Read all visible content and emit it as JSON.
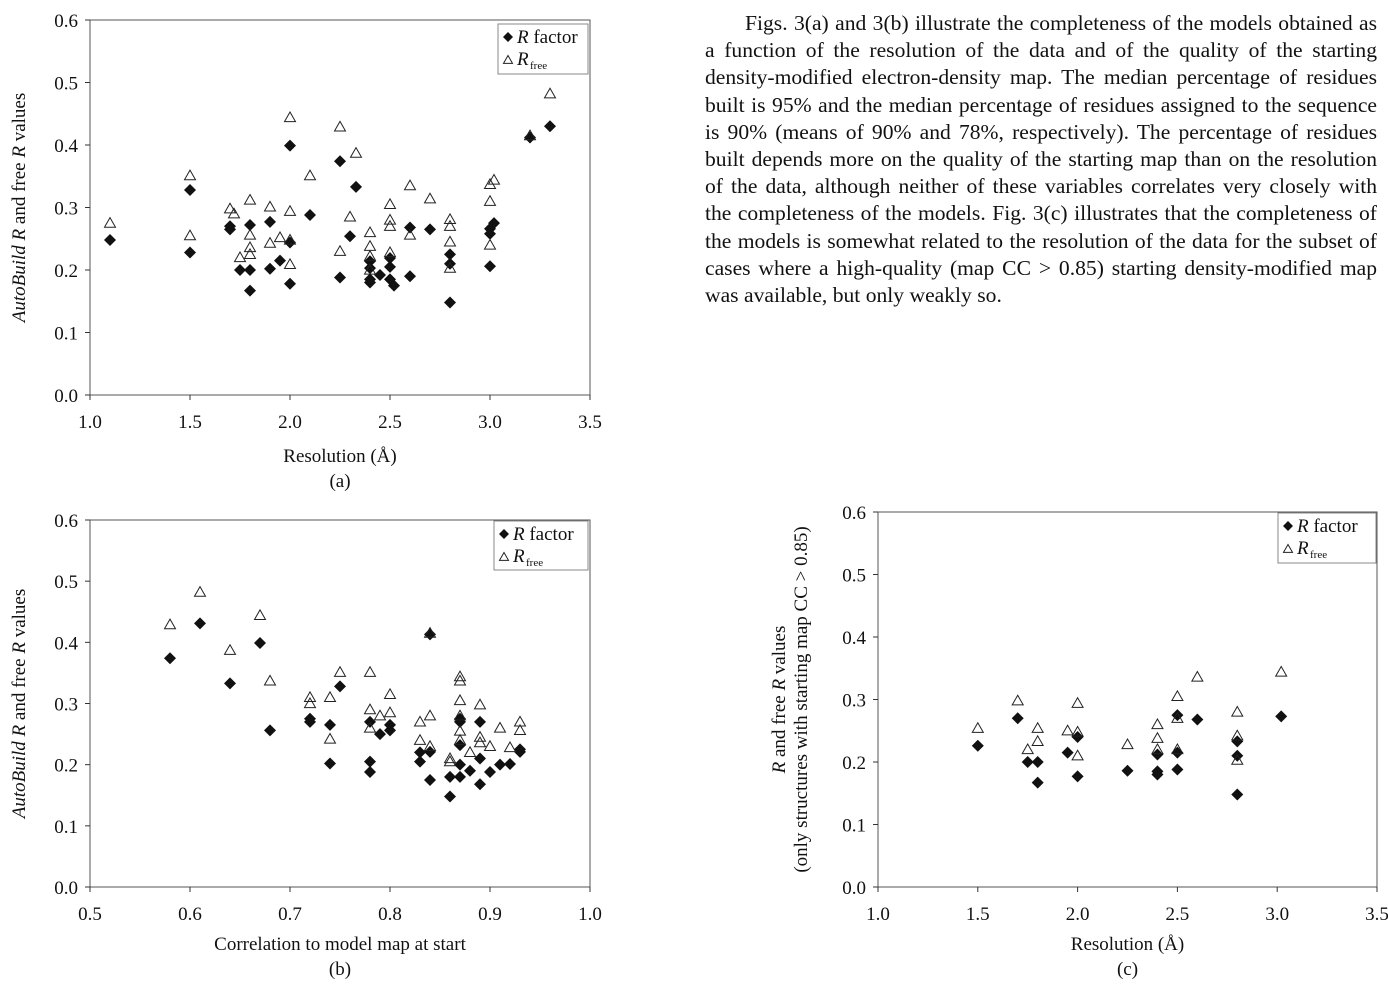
{
  "paragraph": "Figs. 3(a) and 3(b) illustrate the completeness of the models obtained as a function of the resolution of the data and of the quality of the starting density-modified electron-density map. The median percentage of residues built is 95% and the median percentage of residues assigned to the sequence is 90% (means of 90% and 78%, respectively). The percentage of residues built depends more on the quality of the starting map than on the resolution of the data, although neither of these variables correlates very closely with the completeness of the models. Fig. 3(c) illustrates that the completeness of the models is somewhat related to the resolution of the data for the subset of cases where a high-quality (map CC > 0.85) starting density-modified map was available, but only weakly so.",
  "chart_data": [
    {
      "id": "a",
      "type": "scatter",
      "caption": "(a)",
      "xlabel": "Resolution (Å)",
      "ylabel_italic": "AutoBuild",
      "ylabel_rest": " R and free R values",
      "xlim": [
        1.0,
        3.5
      ],
      "ylim": [
        0.0,
        0.6
      ],
      "xticks": [
        "1.0",
        "1.5",
        "2.0",
        "2.5",
        "3.0",
        "3.5"
      ],
      "yticks": [
        "0.0",
        "0.1",
        "0.2",
        "0.3",
        "0.4",
        "0.5",
        "0.6"
      ],
      "legend": {
        "r_label": "R factor",
        "rfree_label": "R",
        "rfree_sub": "free",
        "position": "top-right"
      },
      "series": [
        {
          "key": "r",
          "marker": "filled-diamond",
          "points": [
            [
              1.1,
              0.248
            ],
            [
              1.5,
              0.328
            ],
            [
              1.5,
              0.228
            ],
            [
              1.7,
              0.27
            ],
            [
              1.7,
              0.265
            ],
            [
              1.75,
              0.2
            ],
            [
              1.8,
              0.272
            ],
            [
              1.8,
              0.2
            ],
            [
              1.8,
              0.167
            ],
            [
              1.9,
              0.277
            ],
            [
              1.9,
              0.202
            ],
            [
              1.95,
              0.215
            ],
            [
              2.0,
              0.399
            ],
            [
              2.0,
              0.244
            ],
            [
              2.0,
              0.178
            ],
            [
              2.1,
              0.288
            ],
            [
              2.25,
              0.374
            ],
            [
              2.25,
              0.188
            ],
            [
              2.3,
              0.254
            ],
            [
              2.33,
              0.333
            ],
            [
              2.4,
              0.214
            ],
            [
              2.4,
              0.203
            ],
            [
              2.4,
              0.185
            ],
            [
              2.4,
              0.18
            ],
            [
              2.45,
              0.192
            ],
            [
              2.5,
              0.219
            ],
            [
              2.5,
              0.205
            ],
            [
              2.5,
              0.185
            ],
            [
              2.52,
              0.175
            ],
            [
              2.6,
              0.268
            ],
            [
              2.6,
              0.19
            ],
            [
              2.7,
              0.265
            ],
            [
              2.8,
              0.225
            ],
            [
              2.8,
              0.21
            ],
            [
              2.8,
              0.148
            ],
            [
              3.0,
              0.266
            ],
            [
              3.0,
              0.258
            ],
            [
              3.0,
              0.206
            ],
            [
              3.02,
              0.275
            ],
            [
              3.2,
              0.412
            ],
            [
              3.3,
              0.43
            ]
          ]
        },
        {
          "key": "rfree",
          "marker": "open-triangle",
          "points": [
            [
              1.1,
              0.275
            ],
            [
              1.5,
              0.351
            ],
            [
              1.5,
              0.255
            ],
            [
              1.7,
              0.298
            ],
            [
              1.72,
              0.29
            ],
            [
              1.75,
              0.22
            ],
            [
              1.8,
              0.312
            ],
            [
              1.8,
              0.256
            ],
            [
              1.8,
              0.236
            ],
            [
              1.8,
              0.225
            ],
            [
              1.9,
              0.301
            ],
            [
              1.9,
              0.243
            ],
            [
              1.95,
              0.252
            ],
            [
              2.0,
              0.444
            ],
            [
              2.0,
              0.294
            ],
            [
              2.0,
              0.248
            ],
            [
              2.0,
              0.209
            ],
            [
              2.1,
              0.351
            ],
            [
              2.25,
              0.429
            ],
            [
              2.25,
              0.23
            ],
            [
              2.3,
              0.285
            ],
            [
              2.33,
              0.387
            ],
            [
              2.4,
              0.26
            ],
            [
              2.4,
              0.238
            ],
            [
              2.4,
              0.222
            ],
            [
              2.4,
              0.2
            ],
            [
              2.5,
              0.305
            ],
            [
              2.5,
              0.28
            ],
            [
              2.5,
              0.27
            ],
            [
              2.5,
              0.228
            ],
            [
              2.6,
              0.335
            ],
            [
              2.6,
              0.256
            ],
            [
              2.7,
              0.314
            ],
            [
              2.8,
              0.281
            ],
            [
              2.8,
              0.27
            ],
            [
              2.8,
              0.245
            ],
            [
              2.8,
              0.203
            ],
            [
              3.0,
              0.337
            ],
            [
              3.0,
              0.31
            ],
            [
              3.0,
              0.24
            ],
            [
              3.02,
              0.344
            ],
            [
              3.2,
              0.415
            ],
            [
              3.3,
              0.482
            ]
          ]
        }
      ]
    },
    {
      "id": "b",
      "type": "scatter",
      "caption": "(b)",
      "xlabel": "Correlation to model map at start",
      "ylabel_italic": "AutoBuild",
      "ylabel_rest": " R and free R values",
      "xlim": [
        0.5,
        1.0
      ],
      "ylim": [
        0.0,
        0.6
      ],
      "xticks": [
        "0.5",
        "0.6",
        "0.7",
        "0.8",
        "0.9",
        "1.0"
      ],
      "yticks": [
        "0.0",
        "0.1",
        "0.2",
        "0.3",
        "0.4",
        "0.5",
        "0.6"
      ],
      "legend": {
        "r_label": "R factor",
        "rfree_label": "R",
        "rfree_sub": "free",
        "position": "top-right"
      },
      "series": [
        {
          "key": "r",
          "marker": "filled-diamond",
          "points": [
            [
              0.58,
              0.374
            ],
            [
              0.61,
              0.431
            ],
            [
              0.64,
              0.333
            ],
            [
              0.67,
              0.399
            ],
            [
              0.68,
              0.256
            ],
            [
              0.72,
              0.275
            ],
            [
              0.72,
              0.27
            ],
            [
              0.74,
              0.265
            ],
            [
              0.74,
              0.202
            ],
            [
              0.75,
              0.328
            ],
            [
              0.78,
              0.205
            ],
            [
              0.78,
              0.188
            ],
            [
              0.78,
              0.27
            ],
            [
              0.79,
              0.25
            ],
            [
              0.8,
              0.265
            ],
            [
              0.8,
              0.256
            ],
            [
              0.83,
              0.22
            ],
            [
              0.83,
              0.205
            ],
            [
              0.84,
              0.175
            ],
            [
              0.84,
              0.221
            ],
            [
              0.84,
              0.413
            ],
            [
              0.86,
              0.148
            ],
            [
              0.86,
              0.18
            ],
            [
              0.87,
              0.275
            ],
            [
              0.87,
              0.27
            ],
            [
              0.87,
              0.232
            ],
            [
              0.87,
              0.2
            ],
            [
              0.87,
              0.18
            ],
            [
              0.88,
              0.19
            ],
            [
              0.89,
              0.27
            ],
            [
              0.89,
              0.168
            ],
            [
              0.89,
              0.21
            ],
            [
              0.9,
              0.188
            ],
            [
              0.91,
              0.2
            ],
            [
              0.92,
              0.201
            ],
            [
              0.93,
              0.225
            ],
            [
              0.93,
              0.221
            ]
          ]
        },
        {
          "key": "rfree",
          "marker": "open-triangle",
          "points": [
            [
              0.58,
              0.429
            ],
            [
              0.61,
              0.482
            ],
            [
              0.64,
              0.387
            ],
            [
              0.67,
              0.444
            ],
            [
              0.68,
              0.337
            ],
            [
              0.72,
              0.31
            ],
            [
              0.72,
              0.3
            ],
            [
              0.74,
              0.31
            ],
            [
              0.74,
              0.242
            ],
            [
              0.75,
              0.351
            ],
            [
              0.78,
              0.351
            ],
            [
              0.78,
              0.29
            ],
            [
              0.78,
              0.26
            ],
            [
              0.79,
              0.28
            ],
            [
              0.8,
              0.315
            ],
            [
              0.8,
              0.285
            ],
            [
              0.83,
              0.27
            ],
            [
              0.83,
              0.24
            ],
            [
              0.84,
              0.28
            ],
            [
              0.84,
              0.23
            ],
            [
              0.84,
              0.415
            ],
            [
              0.86,
              0.205
            ],
            [
              0.86,
              0.21
            ],
            [
              0.87,
              0.344
            ],
            [
              0.87,
              0.337
            ],
            [
              0.87,
              0.305
            ],
            [
              0.87,
              0.28
            ],
            [
              0.87,
              0.255
            ],
            [
              0.87,
              0.24
            ],
            [
              0.88,
              0.22
            ],
            [
              0.89,
              0.298
            ],
            [
              0.89,
              0.245
            ],
            [
              0.89,
              0.236
            ],
            [
              0.9,
              0.23
            ],
            [
              0.91,
              0.26
            ],
            [
              0.92,
              0.228
            ],
            [
              0.93,
              0.27
            ],
            [
              0.93,
              0.256
            ]
          ]
        }
      ]
    },
    {
      "id": "c",
      "type": "scatter",
      "caption": "(c)",
      "xlabel": "Resolution (Å)",
      "ylabel_italic": "",
      "ylabel_rest": "",
      "ylabel_line1_r": "R",
      "ylabel_line1_mid": " and free ",
      "ylabel_line1_r2": "R",
      "ylabel_line1_end": " values",
      "ylabel_line2": "(only structures with starting map CC > 0.85)",
      "xlim": [
        1.0,
        3.5
      ],
      "ylim": [
        0.0,
        0.6
      ],
      "xticks": [
        "1.0",
        "1.5",
        "2.0",
        "2.5",
        "3.0",
        "3.5"
      ],
      "yticks": [
        "0.0",
        "0.1",
        "0.2",
        "0.3",
        "0.4",
        "0.5",
        "0.6"
      ],
      "legend": {
        "r_label": "R factor",
        "rfree_label": "R",
        "rfree_sub": "free",
        "position": "top-right"
      },
      "series": [
        {
          "key": "r",
          "marker": "filled-diamond",
          "points": [
            [
              1.5,
              0.226
            ],
            [
              1.7,
              0.27
            ],
            [
              1.75,
              0.2
            ],
            [
              1.8,
              0.2
            ],
            [
              1.8,
              0.167
            ],
            [
              1.95,
              0.215
            ],
            [
              2.0,
              0.24
            ],
            [
              2.0,
              0.177
            ],
            [
              2.25,
              0.186
            ],
            [
              2.4,
              0.212
            ],
            [
              2.4,
              0.185
            ],
            [
              2.4,
              0.18
            ],
            [
              2.5,
              0.275
            ],
            [
              2.5,
              0.215
            ],
            [
              2.5,
              0.188
            ],
            [
              2.6,
              0.268
            ],
            [
              2.8,
              0.233
            ],
            [
              2.8,
              0.21
            ],
            [
              2.8,
              0.148
            ],
            [
              3.02,
              0.273
            ]
          ]
        },
        {
          "key": "rfree",
          "marker": "open-triangle",
          "points": [
            [
              1.5,
              0.254
            ],
            [
              1.7,
              0.298
            ],
            [
              1.75,
              0.22
            ],
            [
              1.8,
              0.254
            ],
            [
              1.8,
              0.233
            ],
            [
              1.95,
              0.25
            ],
            [
              2.0,
              0.294
            ],
            [
              2.0,
              0.248
            ],
            [
              2.0,
              0.21
            ],
            [
              2.25,
              0.228
            ],
            [
              2.4,
              0.26
            ],
            [
              2.4,
              0.238
            ],
            [
              2.4,
              0.22
            ],
            [
              2.5,
              0.305
            ],
            [
              2.5,
              0.27
            ],
            [
              2.5,
              0.22
            ],
            [
              2.6,
              0.336
            ],
            [
              2.8,
              0.28
            ],
            [
              2.8,
              0.242
            ],
            [
              2.8,
              0.203
            ],
            [
              3.02,
              0.344
            ]
          ]
        }
      ]
    }
  ]
}
